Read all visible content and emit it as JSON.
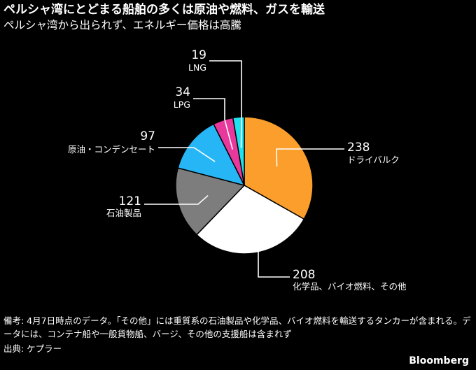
{
  "header": {
    "title": "ペルシャ湾にとどまる船舶の多くは原油や燃料、ガスを輸送",
    "subtitle": "ペルシャ湾から出られず、エネルギー価格は高騰"
  },
  "chart_data": {
    "type": "pie",
    "title": "",
    "slices": [
      {
        "label": "ドライバルク",
        "value": 238,
        "color": "#fb9e2b"
      },
      {
        "label": "化学品、バイオ燃料、その他",
        "value": 208,
        "color": "#ffffff"
      },
      {
        "label": "石油製品",
        "value": 121,
        "color": "#7d7d7d"
      },
      {
        "label": "原油・コンデンセート",
        "value": 97,
        "color": "#27b6f5"
      },
      {
        "label": "LPG",
        "value": 34,
        "color": "#e8389c"
      },
      {
        "label": "LNG",
        "value": 19,
        "color": "#1ee3ee"
      }
    ],
    "start_direction": "12 o'clock",
    "direction": "clockwise",
    "legend": "none"
  },
  "footer": {
    "note": "備考: 4月7日時点のデータ。「その他」には重質系の石油製品や化学品、バイオ燃料を輸送するタンカーが含まれる。データには、コンテナ船や一般貨物船、バージ、その他の支援船は含まれず",
    "source": "出典: ケプラー",
    "brand": "Bloomberg"
  }
}
